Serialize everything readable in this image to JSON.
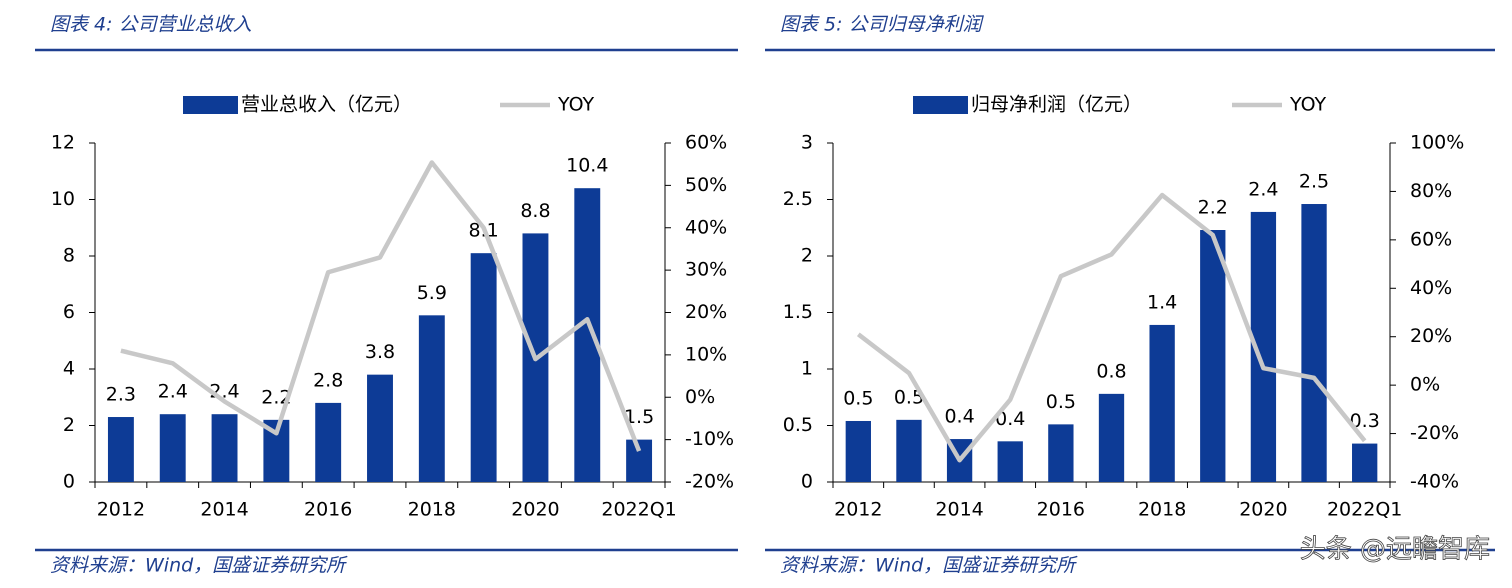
{
  "chart_data": [
    {
      "type": "bar",
      "title": "图表 4:  公司营业总收入",
      "source": "资料来源：Wind，国盛证券研究所",
      "categories": [
        "2012",
        null,
        "2014",
        null,
        "2016",
        null,
        "2018",
        null,
        "2020",
        null,
        "2022Q1"
      ],
      "series": [
        {
          "name": "营业总收入（亿元）",
          "color": "#0d3b96",
          "values": [
            2.3,
            2.4,
            2.4,
            2.2,
            2.8,
            3.8,
            5.9,
            8.1,
            8.8,
            10.4,
            1.5
          ]
        },
        {
          "name": "YOY",
          "type": "line",
          "axis": "y2",
          "color": "#c8c8c8",
          "values": [
            11,
            8,
            -1,
            -8.5,
            29.5,
            33,
            55.4,
            40,
            9,
            18.4,
            -12.7
          ]
        }
      ],
      "ylim": [
        0,
        12
      ],
      "yticks": [
        0,
        2,
        4,
        6,
        8,
        10,
        12
      ],
      "y2lim": [
        -20,
        60
      ],
      "y2ticks": [
        {
          "value": -20,
          "label": "-20%"
        },
        {
          "value": -10,
          "label": "-10%"
        },
        {
          "value": 0,
          "label": "0%"
        },
        {
          "value": 10,
          "label": "10%"
        },
        {
          "value": 20,
          "label": "20%"
        },
        {
          "value": 30,
          "label": "30%"
        },
        {
          "value": 40,
          "label": "40%"
        },
        {
          "value": 50,
          "label": "50%"
        },
        {
          "value": 60,
          "label": "60%"
        }
      ],
      "grid": false
    },
    {
      "type": "bar",
      "title": "图表 5:  公司归母净利润",
      "source": "资料来源：Wind，国盛证券研究所",
      "categories": [
        "2012",
        null,
        "2014",
        null,
        "2016",
        null,
        "2018",
        null,
        "2020",
        null,
        "2022Q1"
      ],
      "series": [
        {
          "name": "归母净利润（亿元）",
          "color": "#0d3b96",
          "values": [
            0.54,
            0.55,
            0.38,
            0.36,
            0.51,
            0.78,
            1.39,
            2.23,
            2.39,
            2.46,
            0.34
          ],
          "value_labels": [
            "0.5",
            "0.5",
            "0.4",
            "0.4",
            "0.5",
            "0.8",
            "1.4",
            "2.2",
            "2.4",
            "2.5",
            "0.3"
          ]
        },
        {
          "name": "YOY",
          "type": "line",
          "axis": "y2",
          "color": "#c8c8c8",
          "values": [
            21,
            5,
            -31,
            -6,
            45,
            54,
            78.5,
            62,
            7,
            3,
            -23
          ]
        }
      ],
      "ylim": [
        0,
        3
      ],
      "yticks": [
        0,
        0.5,
        1,
        1.5,
        2,
        2.5,
        3
      ],
      "y2lim": [
        -40,
        100
      ],
      "y2ticks": [
        {
          "value": -40,
          "label": "-40%"
        },
        {
          "value": -20,
          "label": "-20%"
        },
        {
          "value": 0,
          "label": "0%"
        },
        {
          "value": 20,
          "label": "20%"
        },
        {
          "value": 40,
          "label": "40%"
        },
        {
          "value": 60,
          "label": "60%"
        },
        {
          "value": 80,
          "label": "80%"
        },
        {
          "value": 100,
          "label": "100%"
        }
      ],
      "grid": false
    }
  ],
  "watermark": "头条 @远瞻智库"
}
